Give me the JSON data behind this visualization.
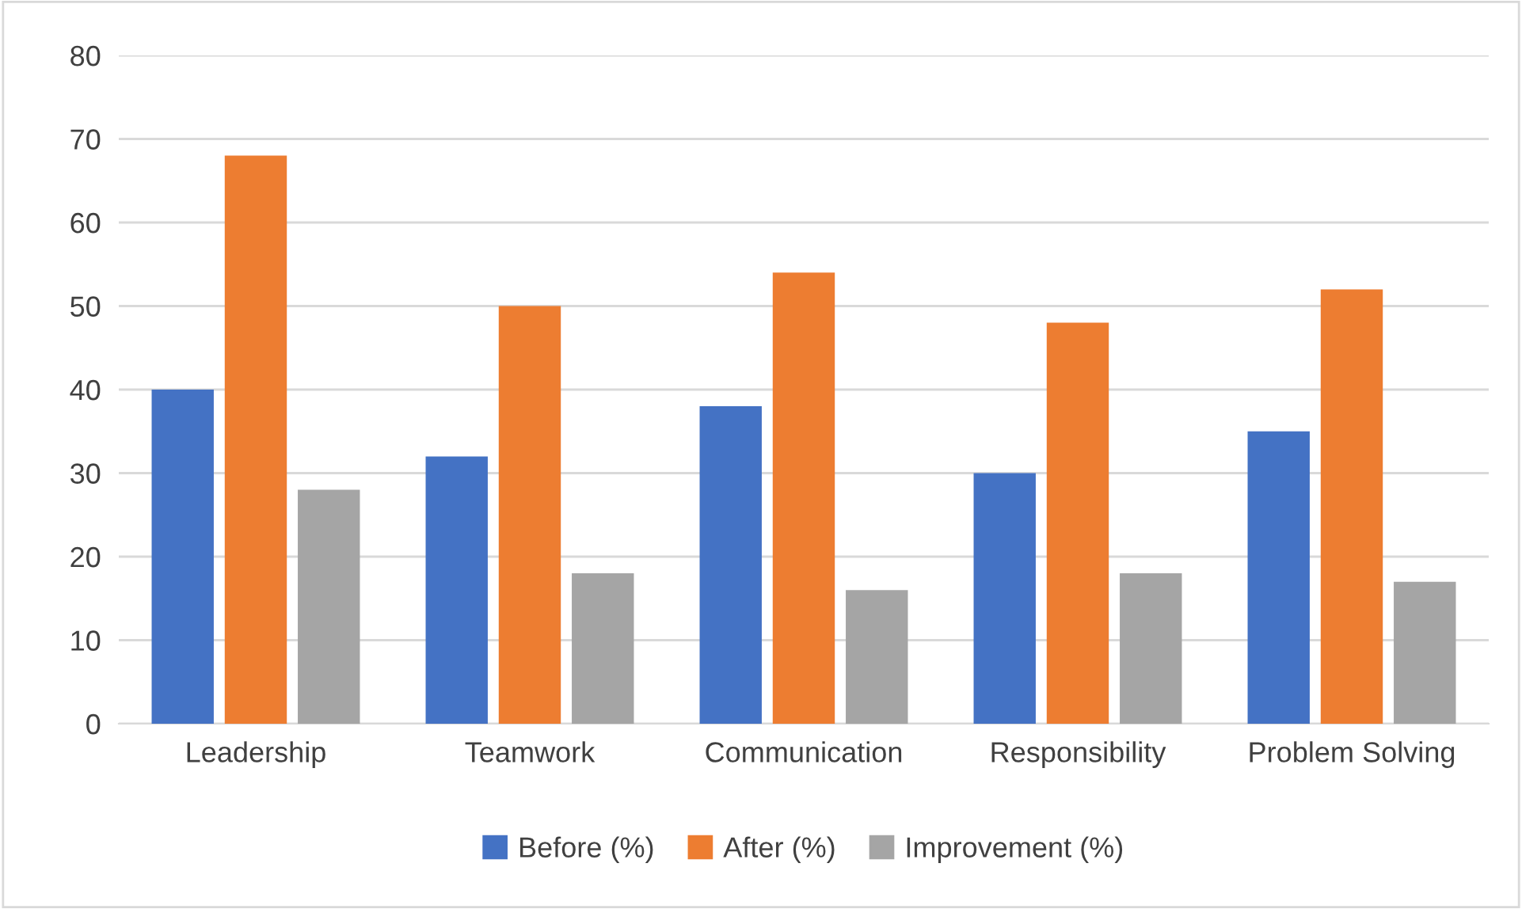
{
  "chart_data": {
    "type": "bar",
    "categories": [
      "Leadership",
      "Teamwork",
      "Communication",
      "Responsibility",
      "Problem Solving"
    ],
    "series": [
      {
        "name": "Before (%)",
        "color": "#4472c4",
        "values": [
          40,
          32,
          38,
          30,
          35
        ]
      },
      {
        "name": "After (%)",
        "color": "#ed7d31",
        "values": [
          68,
          50,
          54,
          48,
          52
        ]
      },
      {
        "name": "Improvement (%)",
        "color": "#a5a5a5",
        "values": [
          28,
          18,
          16,
          18,
          17
        ]
      }
    ],
    "ylim": [
      0,
      80
    ],
    "yticks": [
      0,
      10,
      20,
      30,
      40,
      50,
      60,
      70,
      80
    ],
    "grid": "y",
    "legend": "bottom"
  }
}
